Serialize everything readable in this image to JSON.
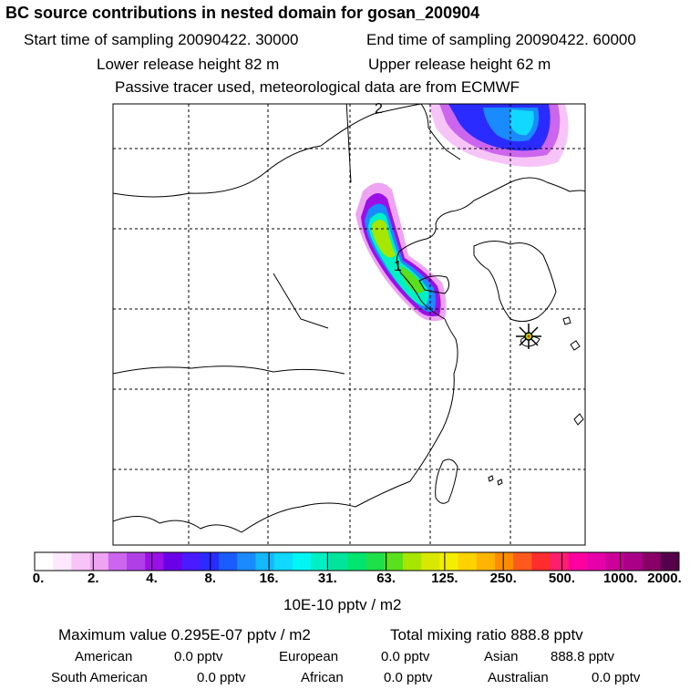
{
  "header": {
    "title": "BC  source contributions in nested domain for gosan_200904",
    "start_time": "Start time of sampling 20090422. 30000",
    "end_time": "End time of sampling 20090422. 60000",
    "lower_height": "Lower release height   82 m",
    "upper_height": "Upper release height   62 m",
    "tracer_note": "Passive tracer used, meteorological data are from ECMWF"
  },
  "map": {
    "markers": {
      "label_2": "2",
      "label_1": "1"
    },
    "receptor": "gosan"
  },
  "colorbar": {
    "colors": [
      "#ffffff",
      "#fde8fd",
      "#f7c4f8",
      "#efa3f3",
      "#cc66ee",
      "#b13fe8",
      "#9a10e6",
      "#6b00e8",
      "#4a1bff",
      "#2a2bff",
      "#1a5cff",
      "#198aff",
      "#14b8ff",
      "#10d8ff",
      "#00f5f5",
      "#00f0c6",
      "#00e59b",
      "#00e56f",
      "#1ee04a",
      "#5ae01c",
      "#a6e600",
      "#d9e800",
      "#f4ef00",
      "#ffd200",
      "#ffb400",
      "#ff8c00",
      "#ff5a1e",
      "#ff2d2d",
      "#ff1e6e",
      "#ff00a0",
      "#e600aa",
      "#cc0099",
      "#aa0088",
      "#880066",
      "#55004a"
    ],
    "tick_labels": [
      "0.",
      "2.",
      "4.",
      "8.",
      "16.",
      "31.",
      "63.",
      "125.",
      "250.",
      "500.",
      "1000.",
      "2000."
    ],
    "unit": "10E-10 pptv / m2"
  },
  "summary": {
    "max_value": "Maximum value  0.295E-07 pptv / m2",
    "total_mixing": "Total mixing ratio      888.8 pptv",
    "american_label": "American",
    "american_val": "0.0 pptv",
    "european_label": "European",
    "european_val": "0.0 pptv",
    "asian_label": "Asian",
    "asian_val": "888.8 pptv",
    "south_american_label": "South American",
    "south_american_val": "0.0 pptv",
    "african_label": "African",
    "african_val": "0.0 pptv",
    "australian_label": "Australian",
    "australian_val": "0.0 pptv"
  }
}
